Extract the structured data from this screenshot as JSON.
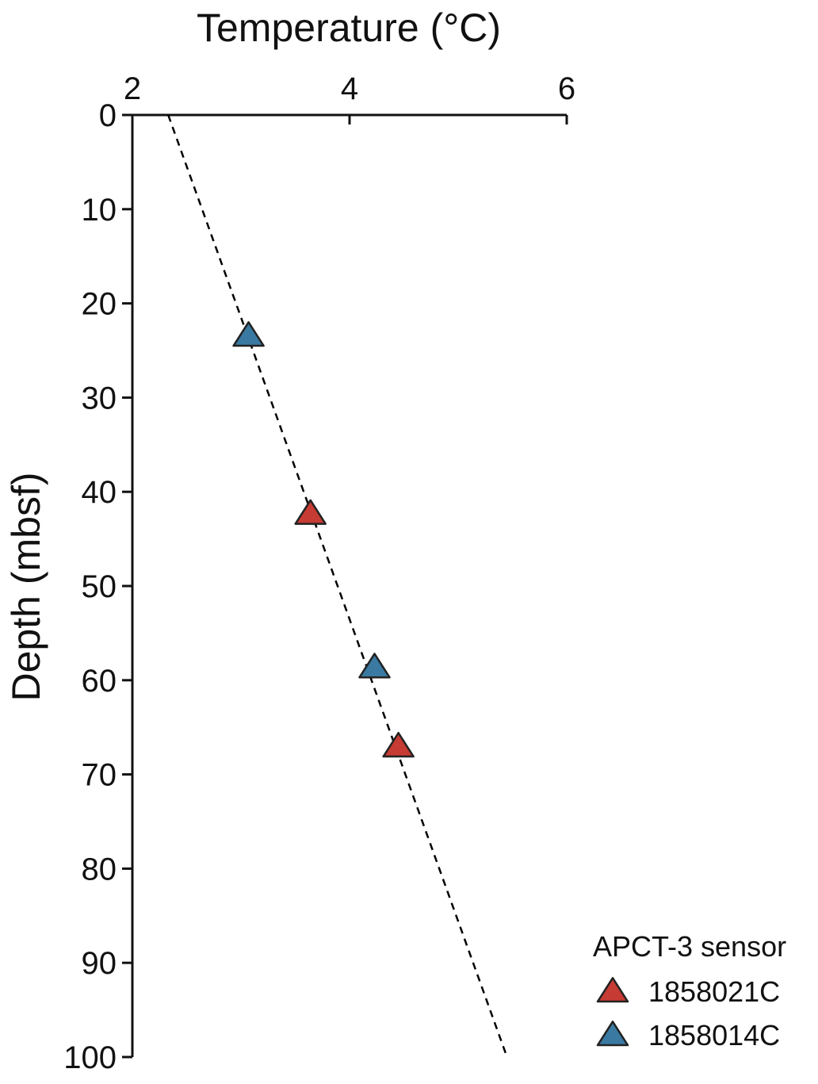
{
  "chart_data": {
    "type": "scatter",
    "xlabel": "Temperature (°C)",
    "ylabel": "Depth (mbsf)",
    "xlim": [
      2,
      6
    ],
    "ylim": [
      0,
      100
    ],
    "x_axis_position": "top",
    "y_inverted": true,
    "grid": false,
    "x_ticks": [
      2,
      4,
      6
    ],
    "y_ticks": [
      0,
      10,
      20,
      30,
      40,
      50,
      60,
      70,
      80,
      90,
      100
    ],
    "series": [
      {
        "name": "1858021C",
        "color": "#c63b33",
        "marker": "triangle",
        "points": [
          {
            "x": 3.64,
            "y": 42.3
          },
          {
            "x": 4.45,
            "y": 67.0
          }
        ]
      },
      {
        "name": "1858014C",
        "color": "#3a7aa2",
        "marker": "triangle",
        "points": [
          {
            "x": 3.07,
            "y": 23.4
          },
          {
            "x": 4.23,
            "y": 58.6
          }
        ]
      }
    ],
    "fit_line": {
      "style": "dashed",
      "color": "#000000",
      "points": [
        {
          "x": 2.33,
          "y": 0
        },
        {
          "x": 5.45,
          "y": 100
        }
      ]
    },
    "legend": {
      "title": "APCT-3 sensor",
      "placement": "bottom-right"
    }
  }
}
